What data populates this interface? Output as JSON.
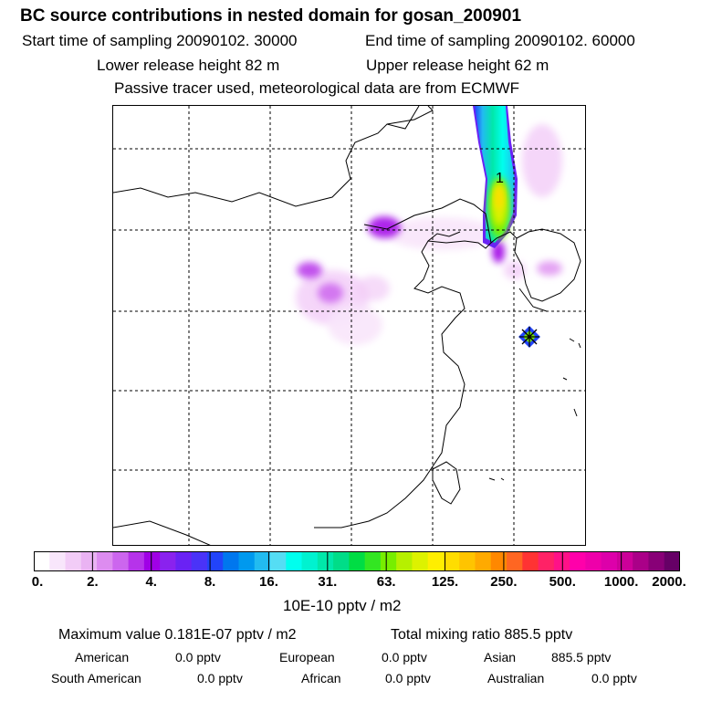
{
  "title": "BC  source contributions in nested domain for gosan_200901",
  "sampling": {
    "start": "Start time of sampling 20090102. 30000",
    "end": "End time of sampling 20090102. 60000"
  },
  "release": {
    "lower": "Lower release height   82 m",
    "upper": "Upper release height   62 m"
  },
  "tracer_note": "Passive tracer used, meteorological data are from ECMWF",
  "map": {
    "marker_label": "1",
    "station_marker_icon": "star-cross-icon"
  },
  "colorbar": {
    "unit": "10E-10 pptv / m2",
    "ticks": [
      "0.",
      "2.",
      "4.",
      "8.",
      "16.",
      "31.",
      "63.",
      "125.",
      "250.",
      "500.",
      "1000.",
      "2000."
    ],
    "colors": [
      "#ffffff",
      "#f8e6fb",
      "#f2ccf7",
      "#eab3f3",
      "#dd8cf0",
      "#cc66ee",
      "#b633ea",
      "#a000e6",
      "#8a22ee",
      "#6a22f4",
      "#4a33f8",
      "#2244fa",
      "#0077ee",
      "#0099ee",
      "#22bbf0",
      "#55ddf4",
      "#00ffee",
      "#00f2d0",
      "#00e8aa",
      "#00dd88",
      "#00dd44",
      "#33e622",
      "#77ee00",
      "#b6f000",
      "#ddf200",
      "#ffee00",
      "#ffdd00",
      "#ffc400",
      "#ffaa00",
      "#ff8800",
      "#ff6622",
      "#ff3333",
      "#ff2266",
      "#ff1188",
      "#ff00aa",
      "#ee00aa",
      "#dd00aa",
      "#cc0099",
      "#aa0088",
      "#880077",
      "#660066"
    ]
  },
  "stats": {
    "maximum": "Maximum value  0.181E-07 pptv / m2",
    "total": "Total mixing ratio      885.5 pptv"
  },
  "regions": [
    {
      "name": "American",
      "value": "0.0 pptv"
    },
    {
      "name": "European",
      "value": "0.0 pptv"
    },
    {
      "name": "Asian",
      "value": "885.5 pptv"
    },
    {
      "name": "South American",
      "value": "0.0 pptv"
    },
    {
      "name": "African",
      "value": "0.0 pptv"
    },
    {
      "name": "Australian",
      "value": "0.0 pptv"
    }
  ]
}
